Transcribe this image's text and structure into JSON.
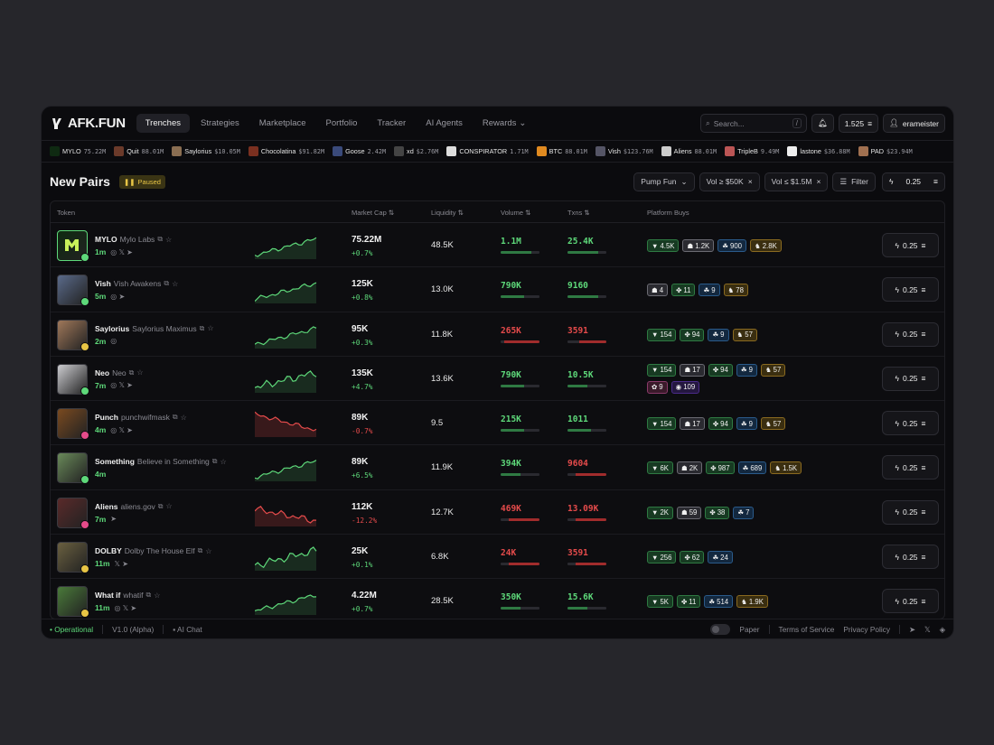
{
  "logo_text": "AFK.FUN",
  "nav": [
    "Trenches",
    "Strategies",
    "Marketplace",
    "Portfolio",
    "Tracker",
    "AI Agents",
    "Rewards"
  ],
  "search": {
    "placeholder": "Search...",
    "shortcut": "/"
  },
  "balance": "1.525",
  "username": "erameister",
  "ticker": [
    {
      "name": "MYLO",
      "val": "75.22M",
      "color": "#0f2a12"
    },
    {
      "name": "Quit",
      "val": "88.01M",
      "color": "#6b3a2a"
    },
    {
      "name": "Saylorius",
      "val": "$10.05M",
      "color": "#8a6e52"
    },
    {
      "name": "Chocolatina",
      "val": "$91.82M",
      "color": "#7a3020"
    },
    {
      "name": "Goose",
      "val": "2.42M",
      "color": "#3a4a7a"
    },
    {
      "name": "xd",
      "val": "$2.76M",
      "color": "#444"
    },
    {
      "name": "CONSPIRATOR",
      "val": "1.71M",
      "color": "#ddd"
    },
    {
      "name": "BTC",
      "val": "88.01M",
      "color": "#e08a20"
    },
    {
      "name": "Vish",
      "val": "$123.76M",
      "color": "#556"
    },
    {
      "name": "Aliens",
      "val": "88.01M",
      "color": "#ccc"
    },
    {
      "name": "TripleB",
      "val": "9.49M",
      "color": "#b55"
    },
    {
      "name": "lastone",
      "val": "$36.88M",
      "color": "#eee"
    },
    {
      "name": "PAD",
      "val": "$23.94M",
      "color": "#a07050"
    }
  ],
  "page_title": "New Pairs",
  "paused_label": "Paused",
  "filters": {
    "platform": "Pump Fun",
    "vol_min": "Vol ≥ $50K",
    "vol_max": "Vol ≤ $1.5M",
    "filter": "Filter",
    "quick": "0.25"
  },
  "columns": [
    "Token",
    "Market Cap",
    "Liquidity",
    "Volume",
    "Txns",
    "Platform Buys"
  ],
  "rows": [
    {
      "sym": "MYLO",
      "full": "Mylo Labs",
      "age": "1m",
      "social": "◎ 𝕏 ➤",
      "mc": "75.22M",
      "chg": "+0.7%",
      "up": true,
      "liq": "48.5K",
      "vol": "1.1M",
      "volc": "pos",
      "volg": 0.8,
      "txn": "25.4K",
      "txnc": "pos",
      "txng": 0.8,
      "av": "#0e2a10",
      "badge": "#5ed97a",
      "trend": "up",
      "buys": [
        [
          {
            "t": "green",
            "g": "▼",
            "v": "4.5K"
          },
          {
            "t": "white",
            "g": "☗",
            "v": "1.2K"
          },
          {
            "t": "blue",
            "g": "☘",
            "v": "900"
          },
          {
            "t": "gold",
            "g": "♞",
            "v": "2.8K"
          }
        ]
      ],
      "quick": "0.25"
    },
    {
      "sym": "Vish",
      "full": "Vish Awakens",
      "age": "5m",
      "social": "◎ ➤",
      "mc": "125K",
      "chg": "+0.8%",
      "up": true,
      "liq": "13.0K",
      "vol": "790K",
      "volc": "pos",
      "volg": 0.6,
      "txn": "9160",
      "txnc": "pos",
      "txng": 0.8,
      "av": "#5a6a8a",
      "badge": "#5ed97a",
      "trend": "up",
      "buys": [
        [
          {
            "t": "white",
            "g": "☗",
            "v": "4"
          },
          {
            "t": "green",
            "g": "✤",
            "v": "11"
          },
          {
            "t": "blue",
            "g": "☘",
            "v": "9"
          },
          {
            "t": "gold",
            "g": "♞",
            "v": "78"
          }
        ]
      ],
      "quick": "0.25"
    },
    {
      "sym": "Saylorius",
      "full": "Saylorius Maximus",
      "age": "2m",
      "social": "◎",
      "mc": "95K",
      "chg": "+0.3%",
      "up": true,
      "liq": "11.8K",
      "vol": "265K",
      "volc": "neg",
      "volg": 0.1,
      "txn": "3591",
      "txnc": "neg",
      "txng": 0.3,
      "av": "#a0785a",
      "badge": "#e8c545",
      "trend": "up",
      "buys": [
        [
          {
            "t": "green",
            "g": "▼",
            "v": "154"
          },
          {
            "t": "green",
            "g": "✤",
            "v": "94"
          },
          {
            "t": "blue",
            "g": "☘",
            "v": "9"
          },
          {
            "t": "gold",
            "g": "♞",
            "v": "57"
          }
        ]
      ],
      "quick": "0.25"
    },
    {
      "sym": "Neo",
      "full": "Neo",
      "age": "7m",
      "social": "◎ 𝕏 ➤",
      "mc": "135K",
      "chg": "+4.7%",
      "up": true,
      "liq": "13.6K",
      "vol": "790K",
      "volc": "pos",
      "volg": 0.6,
      "txn": "10.5K",
      "txnc": "pos",
      "txng": 0.5,
      "av": "#ccccd0",
      "badge": "#5ed97a",
      "trend": "upwave",
      "buys": [
        [
          {
            "t": "green",
            "g": "▼",
            "v": "154"
          },
          {
            "t": "white",
            "g": "☗",
            "v": "17"
          },
          {
            "t": "green",
            "g": "✤",
            "v": "94"
          },
          {
            "t": "blue",
            "g": "☘",
            "v": "9"
          },
          {
            "t": "gold",
            "g": "♞",
            "v": "57"
          }
        ],
        [
          {
            "t": "pink",
            "g": "✿",
            "v": "9"
          },
          {
            "t": "purple",
            "g": "◉",
            "v": "109"
          }
        ]
      ],
      "quick": "0.25"
    },
    {
      "sym": "Punch",
      "full": "punchwifmask",
      "age": "4m",
      "social": "◎ 𝕏 ➤",
      "mc": "89K",
      "chg": "-0.7%",
      "up": false,
      "liq": "9.5",
      "vol": "215K",
      "volc": "pos",
      "volg": 0.6,
      "txn": "1011",
      "txnc": "pos",
      "txng": 0.6,
      "av": "#7a4a20",
      "badge": "#e54b8a",
      "trend": "down",
      "buys": [
        [
          {
            "t": "green",
            "g": "▼",
            "v": "154"
          },
          {
            "t": "white",
            "g": "☗",
            "v": "17"
          },
          {
            "t": "green",
            "g": "✤",
            "v": "94"
          },
          {
            "t": "blue",
            "g": "☘",
            "v": "9"
          },
          {
            "t": "gold",
            "g": "♞",
            "v": "57"
          }
        ]
      ],
      "quick": "0.25"
    },
    {
      "sym": "Something",
      "full": "Believe in Something",
      "age": "4m",
      "social": "",
      "mc": "89K",
      "chg": "+6.5%",
      "up": true,
      "liq": "11.9K",
      "vol": "394K",
      "volc": "pos",
      "volg": 0.5,
      "txn": "9604",
      "txnc": "neg",
      "txng": 0.2,
      "av": "#6a8a5a",
      "badge": "#5ed97a",
      "trend": "up",
      "buys": [
        [
          {
            "t": "green",
            "g": "▼",
            "v": "6K"
          },
          {
            "t": "white",
            "g": "☗",
            "v": "2K"
          },
          {
            "t": "green",
            "g": "✤",
            "v": "987"
          },
          {
            "t": "blue",
            "g": "☘",
            "v": "689"
          },
          {
            "t": "gold",
            "g": "♞",
            "v": "1.5K"
          }
        ]
      ],
      "quick": "0.25"
    },
    {
      "sym": "Aliens",
      "full": "aliens.gov",
      "age": "7m",
      "social": "➤",
      "mc": "112K",
      "chg": "-12.2%",
      "up": false,
      "liq": "12.7K",
      "vol": "469K",
      "volc": "neg",
      "volg": 0.2,
      "txn": "13.09K",
      "txnc": "neg",
      "txng": 0.2,
      "av": "#5a2a2a",
      "badge": "#e54b8a",
      "trend": "down2",
      "buys": [
        [
          {
            "t": "green",
            "g": "▼",
            "v": "2K"
          },
          {
            "t": "white",
            "g": "☗",
            "v": "59"
          },
          {
            "t": "green",
            "g": "✤",
            "v": "38"
          },
          {
            "t": "blue",
            "g": "☘",
            "v": "7"
          }
        ]
      ],
      "quick": "0.25"
    },
    {
      "sym": "DOLBY",
      "full": "Dolby The House Elf",
      "age": "11m",
      "social": "𝕏 ➤",
      "mc": "25K",
      "chg": "+0.1%",
      "up": true,
      "liq": "6.8K",
      "vol": "24K",
      "volc": "neg",
      "volg": 0.2,
      "txn": "3591",
      "txnc": "neg",
      "txng": 0.2,
      "av": "#6a6040",
      "badge": "#e8c545",
      "trend": "upwave",
      "buys": [
        [
          {
            "t": "green",
            "g": "▼",
            "v": "256"
          },
          {
            "t": "green",
            "g": "✤",
            "v": "62"
          },
          {
            "t": "blue",
            "g": "☘",
            "v": "24"
          }
        ]
      ],
      "quick": "0.25"
    },
    {
      "sym": "What if",
      "full": "whatif",
      "age": "11m",
      "social": "◎ 𝕏 ➤",
      "mc": "4.22M",
      "chg": "+0.7%",
      "up": true,
      "liq": "28.5K",
      "vol": "350K",
      "volc": "pos",
      "volg": 0.5,
      "txn": "15.6K",
      "txnc": "pos",
      "txng": 0.5,
      "av": "#4a7a3a",
      "badge": "#e8c545",
      "trend": "up",
      "buys": [
        [
          {
            "t": "green",
            "g": "▼",
            "v": "5K"
          },
          {
            "t": "green",
            "g": "✤",
            "v": "11"
          },
          {
            "t": "blue",
            "g": "☘",
            "v": "514"
          },
          {
            "t": "gold",
            "g": "♞",
            "v": "1.9K"
          }
        ]
      ],
      "quick": "0.25"
    }
  ],
  "footer": {
    "status": "• Operational",
    "version": "V1.0 (Alpha)",
    "chat": "AI Chat",
    "paper": "Paper",
    "tos": "Terms of Service",
    "privacy": "Privacy Policy"
  },
  "colors": {
    "accent_green": "#5ed97a",
    "accent_red": "#e54b4b",
    "paused": "#e8c545"
  }
}
